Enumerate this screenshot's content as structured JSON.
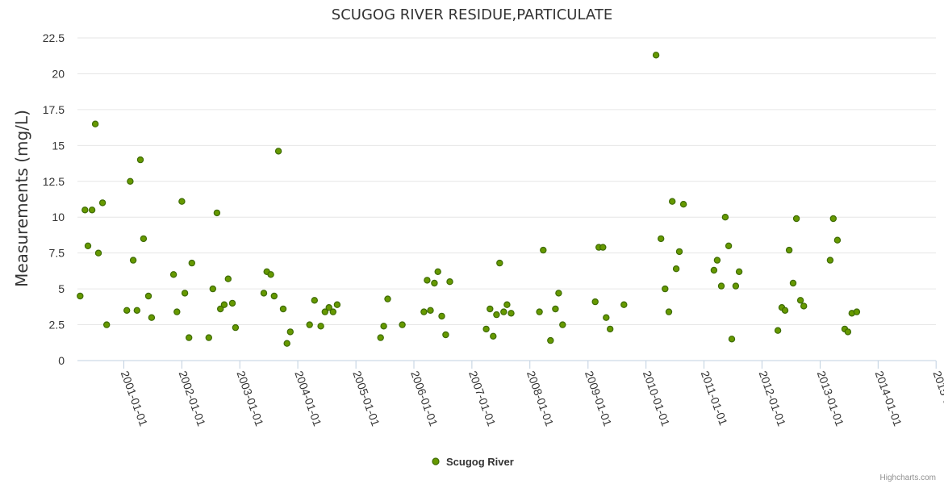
{
  "chart_data": {
    "type": "scatter",
    "title": "SCUGOG RIVER RESIDUE,PARTICULATE",
    "ylabel": "Measurements (mg/L)",
    "xlabel": "",
    "ylim": [
      0,
      22.5
    ],
    "yticks": [
      "0",
      "2.5",
      "5",
      "7.5",
      "10",
      "12.5",
      "15",
      "17.5",
      "20",
      "22.5"
    ],
    "xlim": [
      "2000-03-15",
      "2014-12-31"
    ],
    "xticks": [
      "2001-01-01",
      "2002-01-01",
      "2003-01-01",
      "2004-01-01",
      "2005-01-01",
      "2006-01-01",
      "2007-01-01",
      "2008-01-01",
      "2009-01-01",
      "2010-01-01",
      "2011-01-01",
      "2012-01-01",
      "2013-01-01",
      "2014-01-01",
      "2015-01-01"
    ],
    "grid": true,
    "legend_position": "bottom-center",
    "marker_color": "#669900",
    "marker_stroke": "#3d6b00",
    "series": [
      {
        "name": "Scugog River",
        "points": [
          [
            "2000-04-01",
            4.5
          ],
          [
            "2000-05-01",
            10.5
          ],
          [
            "2000-05-20",
            8.0
          ],
          [
            "2000-06-15",
            10.5
          ],
          [
            "2000-07-05",
            16.5
          ],
          [
            "2000-07-25",
            7.5
          ],
          [
            "2000-08-20",
            11.0
          ],
          [
            "2000-09-15",
            2.5
          ],
          [
            "2001-01-20",
            3.5
          ],
          [
            "2001-02-10",
            12.5
          ],
          [
            "2001-03-01",
            7.0
          ],
          [
            "2001-03-25",
            3.5
          ],
          [
            "2001-04-15",
            14.0
          ],
          [
            "2001-05-05",
            8.5
          ],
          [
            "2001-06-05",
            4.5
          ],
          [
            "2001-06-25",
            3.0
          ],
          [
            "2001-11-10",
            6.0
          ],
          [
            "2001-12-01",
            3.4
          ],
          [
            "2002-01-01",
            11.1
          ],
          [
            "2002-01-20",
            4.7
          ],
          [
            "2002-02-15",
            1.6
          ],
          [
            "2002-03-05",
            6.8
          ],
          [
            "2002-06-20",
            1.6
          ],
          [
            "2002-07-15",
            5.0
          ],
          [
            "2002-08-10",
            10.3
          ],
          [
            "2002-09-01",
            3.6
          ],
          [
            "2002-09-25",
            3.9
          ],
          [
            "2002-10-20",
            5.7
          ],
          [
            "2002-11-15",
            4.0
          ],
          [
            "2002-12-05",
            2.3
          ],
          [
            "2003-06-01",
            4.7
          ],
          [
            "2003-06-20",
            6.2
          ],
          [
            "2003-07-15",
            6.0
          ],
          [
            "2003-08-05",
            4.5
          ],
          [
            "2003-09-01",
            14.6
          ],
          [
            "2003-10-01",
            3.6
          ],
          [
            "2003-10-25",
            1.2
          ],
          [
            "2003-11-15",
            2.0
          ],
          [
            "2004-03-15",
            2.5
          ],
          [
            "2004-04-15",
            4.2
          ],
          [
            "2004-05-25",
            2.4
          ],
          [
            "2004-06-20",
            3.4
          ],
          [
            "2004-07-15",
            3.7
          ],
          [
            "2004-08-10",
            3.4
          ],
          [
            "2004-09-05",
            3.9
          ],
          [
            "2005-06-05",
            1.6
          ],
          [
            "2005-06-25",
            2.4
          ],
          [
            "2005-07-20",
            4.3
          ],
          [
            "2005-10-20",
            2.5
          ],
          [
            "2006-03-05",
            3.4
          ],
          [
            "2006-03-25",
            5.6
          ],
          [
            "2006-04-15",
            3.5
          ],
          [
            "2006-05-10",
            5.4
          ],
          [
            "2006-06-01",
            6.2
          ],
          [
            "2006-06-25",
            3.1
          ],
          [
            "2006-07-20",
            1.8
          ],
          [
            "2006-08-15",
            5.5
          ],
          [
            "2007-04-01",
            2.2
          ],
          [
            "2007-04-25",
            3.6
          ],
          [
            "2007-05-15",
            1.7
          ],
          [
            "2007-06-05",
            3.2
          ],
          [
            "2007-06-25",
            6.8
          ],
          [
            "2007-07-20",
            3.4
          ],
          [
            "2007-08-10",
            3.9
          ],
          [
            "2007-09-05",
            3.3
          ],
          [
            "2008-03-01",
            3.4
          ],
          [
            "2008-03-25",
            7.7
          ],
          [
            "2008-05-10",
            1.4
          ],
          [
            "2008-06-10",
            3.6
          ],
          [
            "2008-06-30",
            4.7
          ],
          [
            "2008-07-25",
            2.5
          ],
          [
            "2009-02-15",
            4.1
          ],
          [
            "2009-03-10",
            7.9
          ],
          [
            "2009-04-05",
            7.9
          ],
          [
            "2009-04-25",
            3.0
          ],
          [
            "2009-05-20",
            2.2
          ],
          [
            "2009-08-15",
            3.9
          ],
          [
            "2010-03-05",
            21.3
          ],
          [
            "2010-04-05",
            8.5
          ],
          [
            "2010-05-01",
            5.0
          ],
          [
            "2010-05-25",
            3.4
          ],
          [
            "2010-06-15",
            11.1
          ],
          [
            "2010-07-10",
            6.4
          ],
          [
            "2010-07-30",
            7.6
          ],
          [
            "2010-08-25",
            10.9
          ],
          [
            "2011-03-05",
            6.3
          ],
          [
            "2011-03-25",
            7.0
          ],
          [
            "2011-04-20",
            5.2
          ],
          [
            "2011-05-15",
            10.0
          ],
          [
            "2011-06-05",
            8.0
          ],
          [
            "2011-06-25",
            1.5
          ],
          [
            "2011-07-20",
            5.2
          ],
          [
            "2011-08-10",
            6.2
          ],
          [
            "2012-04-10",
            2.1
          ],
          [
            "2012-05-05",
            3.7
          ],
          [
            "2012-05-25",
            3.5
          ],
          [
            "2012-06-20",
            7.7
          ],
          [
            "2012-07-15",
            5.4
          ],
          [
            "2012-08-05",
            9.9
          ],
          [
            "2012-08-30",
            4.2
          ],
          [
            "2012-09-20",
            3.8
          ],
          [
            "2013-03-05",
            7.0
          ],
          [
            "2013-03-25",
            9.9
          ],
          [
            "2013-04-20",
            8.4
          ],
          [
            "2013-06-05",
            2.2
          ],
          [
            "2013-06-25",
            2.0
          ],
          [
            "2013-07-20",
            3.3
          ],
          [
            "2013-08-20",
            3.4
          ]
        ]
      }
    ],
    "credits": "Highcharts.com"
  }
}
